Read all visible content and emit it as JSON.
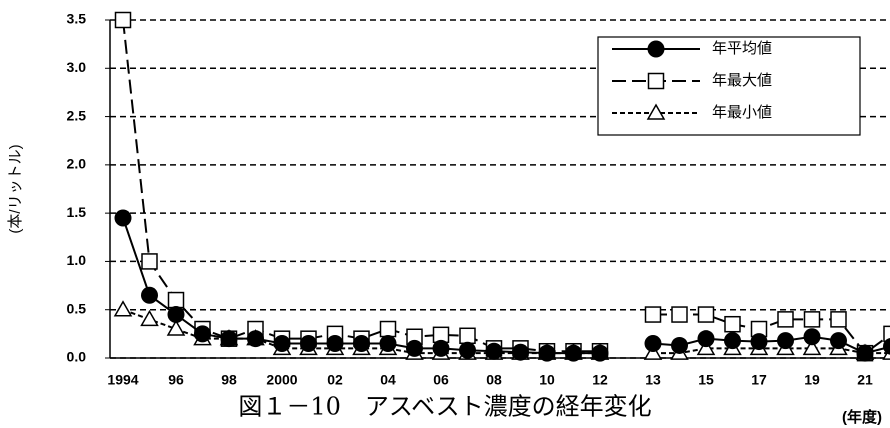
{
  "chart_data": {
    "type": "line",
    "title": "図１－10　アスベスト濃度の経年変化",
    "y_label": "(本/リットル)",
    "x_label": "(年度)",
    "categories": [
      "1994",
      null,
      "96",
      null,
      "98",
      null,
      "2000",
      null,
      "02",
      null,
      "04",
      null,
      "06",
      null,
      "08",
      null,
      "10",
      null,
      "12",
      null,
      "13",
      null,
      "15",
      null,
      "17",
      null,
      "19",
      null,
      "21",
      null
    ],
    "series": [
      {
        "name": "年平均値",
        "color": "#000000",
        "line_style": "solid",
        "marker": "circle",
        "values": [
          1.45,
          0.65,
          0.45,
          0.25,
          0.2,
          0.2,
          0.15,
          0.15,
          0.15,
          0.15,
          0.15,
          0.1,
          0.1,
          0.08,
          0.07,
          0.06,
          0.05,
          0.05,
          0.05,
          null,
          0.15,
          0.13,
          0.2,
          0.18,
          0.17,
          0.18,
          0.22,
          0.18,
          0.05,
          0.12
        ]
      },
      {
        "name": "年最大値",
        "color": "#000000",
        "line_style": "dashed",
        "marker": "square",
        "values": [
          3.5,
          1.0,
          0.6,
          0.3,
          0.2,
          0.3,
          0.2,
          0.2,
          0.25,
          0.2,
          0.3,
          0.22,
          0.24,
          0.23,
          0.1,
          0.1,
          0.07,
          0.07,
          0.07,
          null,
          0.45,
          0.45,
          0.45,
          0.35,
          0.3,
          0.4,
          0.4,
          0.4,
          0.05,
          0.25
        ]
      },
      {
        "name": "年最小値",
        "color": "#000000",
        "line_style": "dotted",
        "marker": "triangle",
        "values": [
          0.5,
          0.4,
          0.3,
          0.2,
          0.2,
          0.2,
          0.1,
          0.1,
          0.1,
          0.1,
          0.1,
          0.05,
          0.05,
          0.05,
          0.05,
          0.05,
          0.05,
          0.05,
          0.05,
          null,
          0.05,
          0.05,
          0.1,
          0.1,
          0.1,
          0.1,
          0.1,
          0.1,
          0.05,
          0.05
        ]
      }
    ],
    "ylim": [
      0,
      3.5
    ],
    "yticks": [
      {
        "value": 0,
        "label": "0.0"
      },
      0.5,
      {
        "value": 1,
        "label": "1.0"
      },
      1.5,
      {
        "value": 2,
        "label": "2.0"
      },
      2.5,
      {
        "value": 3,
        "label": "3.0"
      },
      3.5
    ],
    "grid": true,
    "legend": "upper right"
  }
}
